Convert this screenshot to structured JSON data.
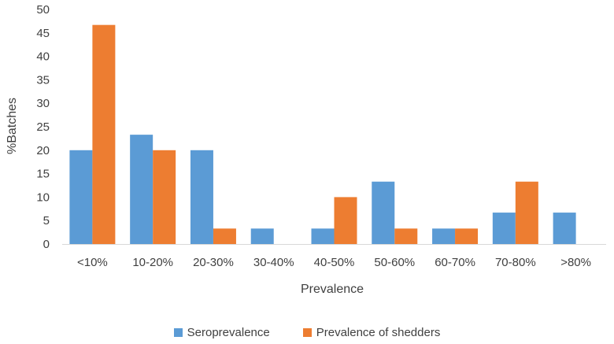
{
  "chart_data": {
    "type": "bar",
    "title": "",
    "xlabel": "Prevalence",
    "ylabel": "%Batches",
    "ylim": [
      0,
      50
    ],
    "yticks": [
      0,
      5,
      10,
      15,
      20,
      25,
      30,
      35,
      40,
      45,
      50
    ],
    "grid": false,
    "legend_position": "bottom",
    "categories": [
      "<10%",
      "10-20%",
      "20-30%",
      "30-40%",
      "40-50%",
      "50-60%",
      "60-70%",
      "70-80%",
      ">80%"
    ],
    "series": [
      {
        "name": "Seroprevalence",
        "color": "#5B9BD5",
        "values": [
          20,
          23.3,
          20,
          3.3,
          3.3,
          13.3,
          3.3,
          6.7,
          6.7
        ]
      },
      {
        "name": "Prevalence of shedders",
        "color": "#ED7D31",
        "values": [
          46.7,
          20,
          3.3,
          0,
          10,
          3.3,
          3.3,
          13.3,
          0
        ]
      }
    ]
  }
}
